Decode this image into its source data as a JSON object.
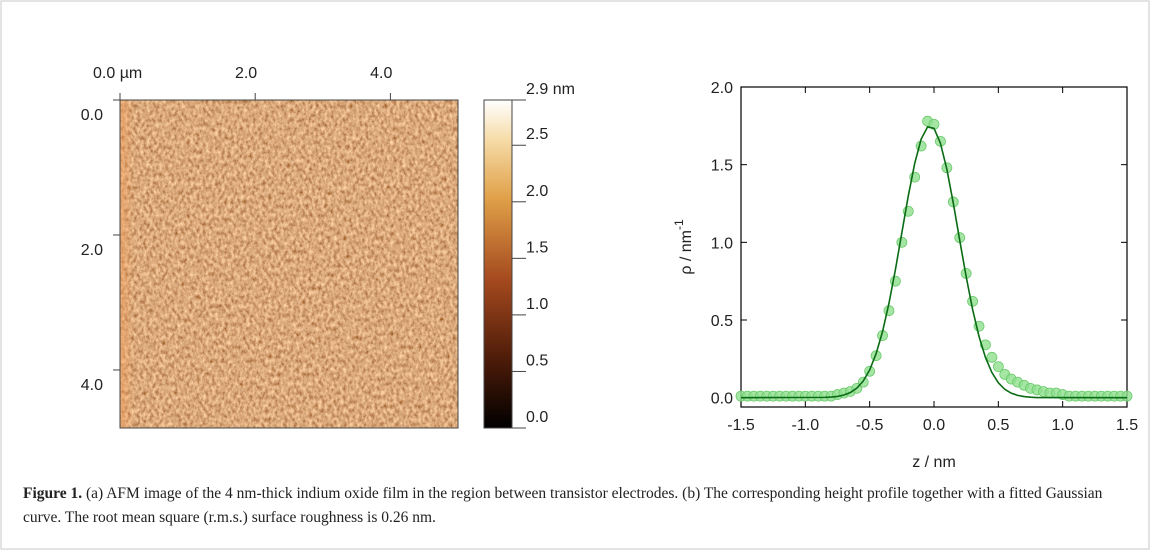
{
  "chart_data": [
    {
      "type": "image",
      "xlim": [
        0,
        5.0
      ],
      "ylim": [
        0,
        4.86
      ],
      "xticks": [
        {
          "value": 0,
          "label": "0.0 µm"
        },
        {
          "value": 2,
          "label": "2.0"
        },
        {
          "value": 4,
          "label": "4.0"
        }
      ],
      "yticks": [
        {
          "value": 0,
          "label": "0.0"
        },
        {
          "value": 2,
          "label": "2.0"
        },
        {
          "value": 4,
          "label": "4.0"
        }
      ],
      "colorbar": {
        "lim": [
          0,
          2.9
        ],
        "ticks": [
          {
            "value": 2.9,
            "label": "2.9 nm"
          },
          2.5,
          {
            "value": 2,
            "label": "2.0"
          },
          1.5,
          {
            "value": 1,
            "label": "1.0"
          },
          0.5,
          {
            "value": 0,
            "label": "0.0"
          }
        ]
      }
    },
    {
      "type": "scatter",
      "xlabel": "z / nm",
      "ylabel": "ρ / nm",
      "ylabel_superscript": "-1",
      "xlim": [
        -1.5,
        1.5
      ],
      "ylim": [
        -0.06,
        2.0
      ],
      "xticks": [
        -1.5,
        {
          "value": -1,
          "label": "-1.0"
        },
        -0.5,
        {
          "value": 0,
          "label": "0.0"
        },
        0.5,
        {
          "value": 1,
          "label": "1.0"
        },
        1.5
      ],
      "yticks": [
        {
          "value": 0,
          "label": "0.0"
        },
        0.5,
        {
          "value": 1,
          "label": "1.0"
        },
        1.5,
        {
          "value": 2,
          "label": "2.0"
        }
      ],
      "series": [
        {
          "style": "markers",
          "color": "#8fe08f",
          "x": [
            -1.5,
            -1.45,
            -1.4,
            -1.35,
            -1.3,
            -1.25,
            -1.2,
            -1.15,
            -1.1,
            -1.05,
            -1.0,
            -0.95,
            -0.9,
            -0.85,
            -0.8,
            -0.75,
            -0.7,
            -0.65,
            -0.6,
            -0.55,
            -0.5,
            -0.45,
            -0.4,
            -0.35,
            -0.3,
            -0.25,
            -0.2,
            -0.15,
            -0.1,
            -0.05,
            0.0,
            0.05,
            0.1,
            0.15,
            0.2,
            0.25,
            0.3,
            0.35,
            0.4,
            0.45,
            0.5,
            0.55,
            0.6,
            0.65,
            0.7,
            0.75,
            0.8,
            0.85,
            0.9,
            0.95,
            1.0,
            1.05,
            1.1,
            1.15,
            1.2,
            1.25,
            1.3,
            1.35,
            1.4,
            1.45,
            1.5
          ],
          "values": [
            0.01,
            0.01,
            0.01,
            0.01,
            0.01,
            0.01,
            0.01,
            0.01,
            0.01,
            0.01,
            0.01,
            0.01,
            0.01,
            0.01,
            0.01,
            0.02,
            0.03,
            0.04,
            0.06,
            0.1,
            0.17,
            0.27,
            0.4,
            0.56,
            0.75,
            1.0,
            1.2,
            1.42,
            1.62,
            1.78,
            1.76,
            1.65,
            1.48,
            1.26,
            1.03,
            0.8,
            0.62,
            0.46,
            0.34,
            0.26,
            0.2,
            0.15,
            0.12,
            0.1,
            0.08,
            0.06,
            0.05,
            0.04,
            0.03,
            0.03,
            0.02,
            0.01,
            0.01,
            0.01,
            0.01,
            0.01,
            0.01,
            0.01,
            0.01,
            0.01,
            0.01
          ]
        },
        {
          "style": "line",
          "color": "#0b6b14",
          "x": [
            -1.5,
            -0.85,
            -0.8,
            -0.75,
            -0.7,
            -0.65,
            -0.6,
            -0.55,
            -0.5,
            -0.45,
            -0.4,
            -0.35,
            -0.3,
            -0.25,
            -0.2,
            -0.15,
            -0.1,
            -0.05,
            0.0,
            0.05,
            0.1,
            0.15,
            0.2,
            0.25,
            0.3,
            0.35,
            0.4,
            0.45,
            0.5,
            0.55,
            0.6,
            0.65,
            0.7,
            0.75,
            0.8,
            0.85,
            1.5
          ],
          "values": [
            0,
            0.002,
            0.004,
            0.008,
            0.017,
            0.033,
            0.061,
            0.107,
            0.179,
            0.283,
            0.425,
            0.608,
            0.824,
            1.061,
            1.298,
            1.508,
            1.664,
            1.743,
            1.734,
            1.638,
            1.47,
            1.252,
            1.013,
            0.779,
            0.568,
            0.394,
            0.259,
            0.162,
            0.096,
            0.054,
            0.029,
            0.015,
            0.007,
            0.003,
            0.001,
            0.001,
            0
          ]
        }
      ]
    }
  ],
  "caption": {
    "label": "Figure 1.",
    "text": "(a) AFM image of the 4 nm-thick indium oxide film in the region between transistor electrodes. (b) The corresponding height profile together with a fitted Gaussian curve. The root mean square (r.m.s.) surface roughness is 0.26 nm."
  }
}
